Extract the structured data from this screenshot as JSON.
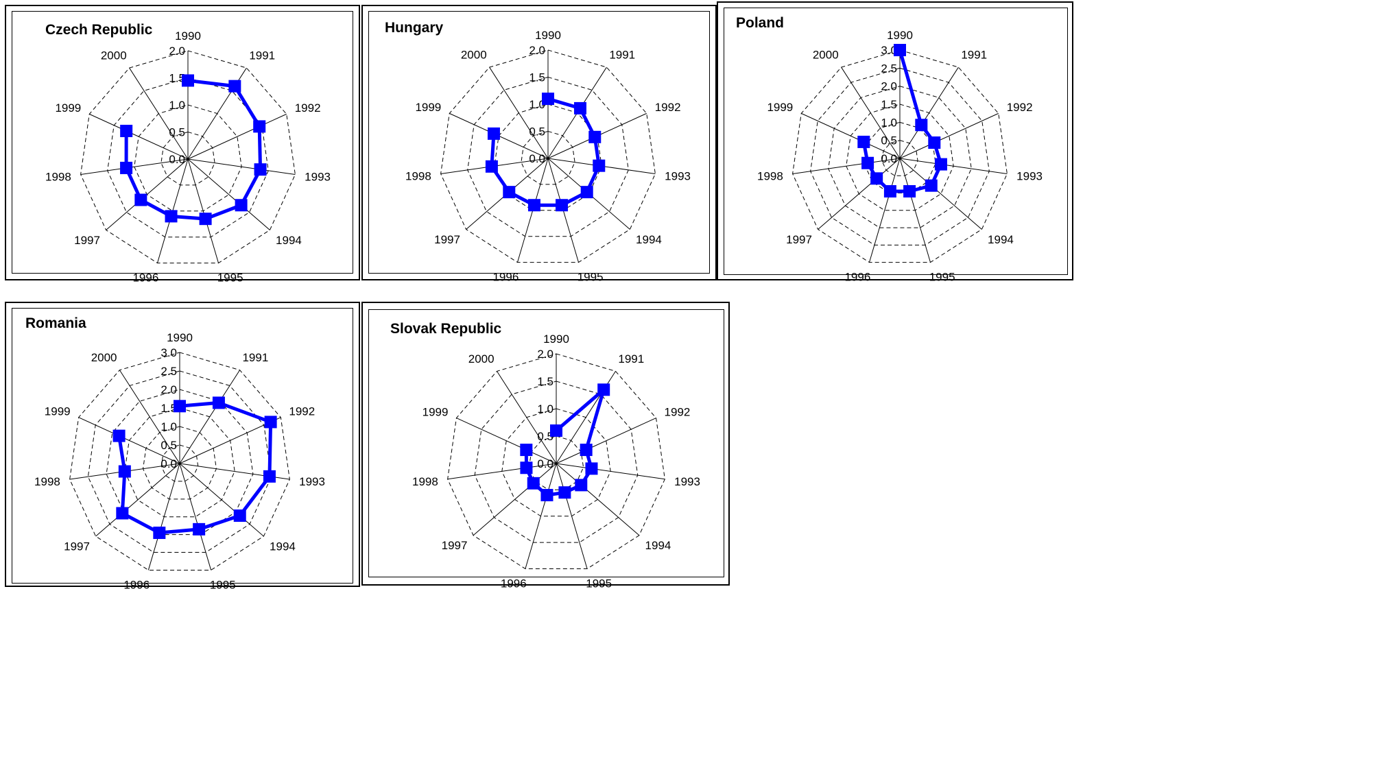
{
  "colors": {
    "series": "#0000ff",
    "grid": "#000000",
    "background": "#ffffff"
  },
  "chart_data": [
    {
      "type": "radar",
      "title": "Czech Republic",
      "categories": [
        "1990",
        "1991",
        "1992",
        "1993",
        "1994",
        "1995",
        "1996",
        "1997",
        "1998",
        "1999",
        "2000"
      ],
      "values": [
        1.45,
        1.6,
        1.45,
        1.35,
        1.3,
        1.15,
        1.1,
        1.15,
        1.15,
        1.25,
        null
      ],
      "rmax": 2.0,
      "ticks": [
        "0.0",
        "0.5",
        "1.0",
        "1.5",
        "2.0"
      ],
      "tick_values": [
        0,
        0.5,
        1.0,
        1.5,
        2.0
      ],
      "grid": "dashed"
    },
    {
      "type": "radar",
      "title": "Hungary",
      "categories": [
        "1990",
        "1991",
        "1992",
        "1993",
        "1994",
        "1995",
        "1996",
        "1997",
        "1998",
        "1999",
        "2000"
      ],
      "values": [
        1.1,
        1.1,
        0.95,
        0.95,
        0.95,
        0.9,
        0.9,
        0.95,
        1.05,
        1.1,
        null
      ],
      "rmax": 2.0,
      "ticks": [
        "0.0",
        "0.5",
        "1.0",
        "1.5",
        "2.0"
      ],
      "tick_values": [
        0,
        0.5,
        1.0,
        1.5,
        2.0
      ],
      "grid": "dashed"
    },
    {
      "type": "radar",
      "title": "Poland",
      "categories": [
        "1990",
        "1991",
        "1992",
        "1993",
        "1994",
        "1995",
        "1996",
        "1997",
        "1998",
        "1999",
        "2000"
      ],
      "values": [
        3.0,
        1.1,
        1.05,
        1.15,
        1.15,
        0.95,
        0.95,
        0.85,
        0.9,
        1.1,
        null
      ],
      "rmax": 3.0,
      "ticks": [
        "0.0",
        "0.5",
        "1.0",
        "1.5",
        "2.0",
        "2.5",
        "3.0"
      ],
      "tick_values": [
        0,
        0.5,
        1.0,
        1.5,
        2.0,
        2.5,
        3.0
      ],
      "grid": "dashed"
    },
    {
      "type": "radar",
      "title": "Romania",
      "categories": [
        "1990",
        "1991",
        "1992",
        "1993",
        "1994",
        "1995",
        "1996",
        "1997",
        "1998",
        "1999",
        "2000"
      ],
      "values": [
        1.55,
        1.95,
        2.7,
        2.45,
        2.15,
        1.85,
        1.95,
        2.05,
        1.5,
        1.8,
        null
      ],
      "rmax": 3.0,
      "ticks": [
        "0.0",
        "0.5",
        "1.0",
        "1.5",
        "2.0",
        "2.5",
        "3.0"
      ],
      "tick_values": [
        0,
        0.5,
        1.0,
        1.5,
        2.0,
        2.5,
        3.0
      ],
      "grid": "dashed"
    },
    {
      "type": "radar",
      "title": "Slovak Republic",
      "categories": [
        "1990",
        "1991",
        "1992",
        "1993",
        "1994",
        "1995",
        "1996",
        "1997",
        "1998",
        "1999",
        "2000"
      ],
      "values": [
        0.6,
        1.6,
        0.6,
        0.65,
        0.6,
        0.55,
        0.6,
        0.55,
        0.55,
        0.6,
        null
      ],
      "rmax": 2.0,
      "ticks": [
        "0.0",
        "0.5",
        "1.0",
        "1.5",
        "2.0"
      ],
      "tick_values": [
        0,
        0.5,
        1.0,
        1.5,
        2.0
      ],
      "grid": "dashed"
    }
  ]
}
